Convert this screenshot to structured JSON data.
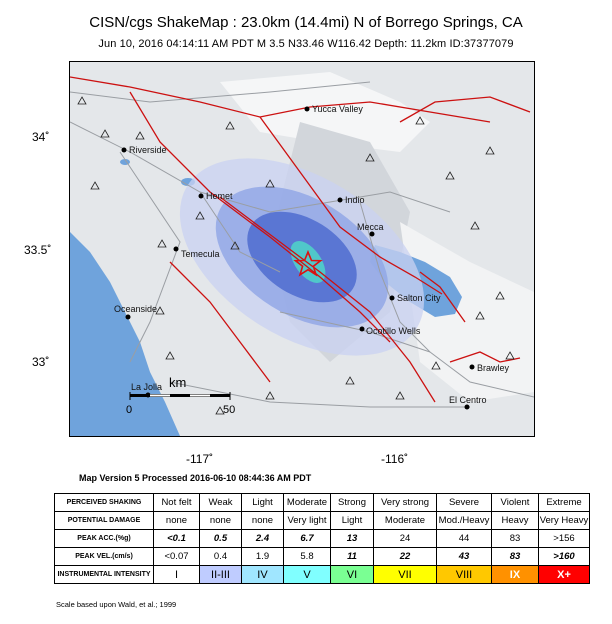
{
  "header": {
    "title": "CISN/cgs ShakeMap : 23.0km (14.4mi) N of Borrego Springs, CA",
    "subtitle": "Jun 10, 2016 04:14:11 AM PDT   M 3.5   N33.46 W116.42   Depth: 11.2km   ID:37377079"
  },
  "map": {
    "lat_ticks": [
      "34˚",
      "33.5˚",
      "33˚"
    ],
    "lon_ticks": [
      "-117˚",
      "-116˚"
    ],
    "cities": {
      "yucca_valley": "Yucca Valley",
      "riverside": "Riverside",
      "hemet": "Hemet",
      "indio": "Indio",
      "mecca": "Mecca",
      "temecula": "Temecula",
      "salton_city": "Salton City",
      "oceanside": "Oceanside",
      "ocotillo_wells": "Ocotillo Wells",
      "brawley": "Brawley",
      "la_jolla": "La Jolla",
      "el_centro": "El Centro"
    },
    "scale_bar": {
      "unit": "km",
      "start": "0",
      "end": "50"
    },
    "epicenter_marker": "star",
    "colors": {
      "water": "#6fa3dc",
      "fault": "#cc1111",
      "intensity_blue": "#5a78d8",
      "intensity_teal": "#4fd6c8"
    }
  },
  "version_text": "Map Version 5 Processed 2016-06-10 08:44:36 AM PDT",
  "legend": {
    "rows": [
      {
        "label": "PERCEIVED SHAKING",
        "cells": [
          "Not felt",
          "Weak",
          "Light",
          "Moderate",
          "Strong",
          "Very strong",
          "Severe",
          "Violent",
          "Extreme"
        ]
      },
      {
        "label": "POTENTIAL DAMAGE",
        "cells": [
          "none",
          "none",
          "none",
          "Very light",
          "Light",
          "Moderate",
          "Mod./Heavy",
          "Heavy",
          "Very Heavy"
        ]
      },
      {
        "label": "PEAK ACC.(%g)",
        "cells": [
          "<0.1",
          "0.5",
          "2.4",
          "6.7",
          "13",
          "24",
          "44",
          "83",
          ">156"
        ]
      },
      {
        "label": "PEAK VEL.(cm/s)",
        "cells": [
          "<0.07",
          "0.4",
          "1.9",
          "5.8",
          "11",
          "22",
          "43",
          "83",
          ">160"
        ]
      },
      {
        "label": "INSTRUMENTAL INTENSITY",
        "cells": [
          "I",
          "II-III",
          "IV",
          "V",
          "VI",
          "VII",
          "VIII",
          "IX",
          "X+"
        ]
      }
    ],
    "intensity_colors": [
      "#ffffff",
      "#bfccff",
      "#a0e6ff",
      "#80ffff",
      "#7aff93",
      "#ffff00",
      "#ffc800",
      "#ff9100",
      "#ff0000"
    ],
    "credit": "Scale based upon Wald, et al.; 1999"
  }
}
